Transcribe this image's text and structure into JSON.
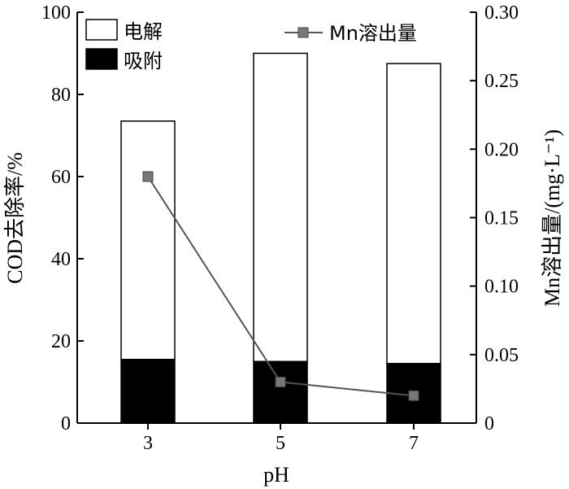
{
  "chart_data": {
    "type": "bar",
    "subtype": "stacked-bar-with-line",
    "categories": [
      "3",
      "5",
      "7"
    ],
    "xlabel": "pH",
    "ylabel": "COD去除率/%",
    "ylabel_right": "Mn溶出量/(mg·L⁻¹)",
    "ylim": [
      0,
      100
    ],
    "ylim_right": [
      0,
      0.3
    ],
    "yticks": [
      "0",
      "20",
      "40",
      "60",
      "80",
      "100"
    ],
    "yticks_right": [
      "0",
      "0.05",
      "0.10",
      "0.15",
      "0.20",
      "0.25",
      "0.30"
    ],
    "series": [
      {
        "name": "吸附",
        "type": "bar",
        "stack": "cod",
        "color": "#000000",
        "values": [
          15.5,
          15.0,
          14.5
        ]
      },
      {
        "name": "电解",
        "type": "bar",
        "stack": "cod",
        "color": "#ffffff",
        "values": [
          58.0,
          75.0,
          73.0
        ]
      },
      {
        "name": "Mn溶出量",
        "type": "line",
        "axis": "right",
        "color": "#555555",
        "marker": "square",
        "values": [
          0.18,
          0.03,
          0.02
        ]
      }
    ],
    "legend": {
      "left": [
        "电解",
        "吸附"
      ],
      "right": [
        "Mn溶出量"
      ]
    },
    "grid": false
  }
}
